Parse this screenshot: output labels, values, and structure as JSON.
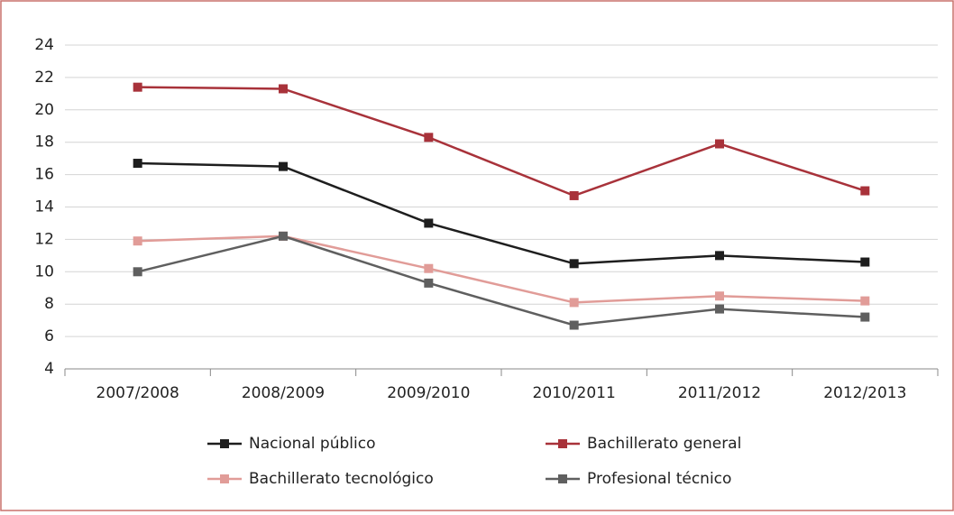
{
  "chart_data": {
    "type": "line",
    "categories": [
      "2007/2008",
      "2008/2009",
      "2009/2010",
      "2010/2011",
      "2011/2012",
      "2012/2013"
    ],
    "series": [
      {
        "name": "Nacional público",
        "color": "#1e1e1e",
        "values": [
          16.7,
          16.5,
          13.0,
          10.5,
          11.0,
          10.6
        ]
      },
      {
        "name": "Bachillerato general",
        "color": "#a8323a",
        "values": [
          21.4,
          21.3,
          18.3,
          14.7,
          17.9,
          15.0
        ]
      },
      {
        "name": "Bachillerato tecnológico",
        "color": "#e19c98",
        "values": [
          11.9,
          12.2,
          10.2,
          8.1,
          8.5,
          8.2
        ]
      },
      {
        "name": "Profesional técnico",
        "color": "#5f5f5f",
        "values": [
          10.0,
          12.2,
          9.3,
          6.7,
          7.7,
          7.2
        ]
      }
    ],
    "ylim": [
      4,
      24
    ],
    "yticks": [
      4,
      6,
      8,
      10,
      12,
      14,
      16,
      18,
      20,
      22,
      24
    ],
    "grid": true
  }
}
